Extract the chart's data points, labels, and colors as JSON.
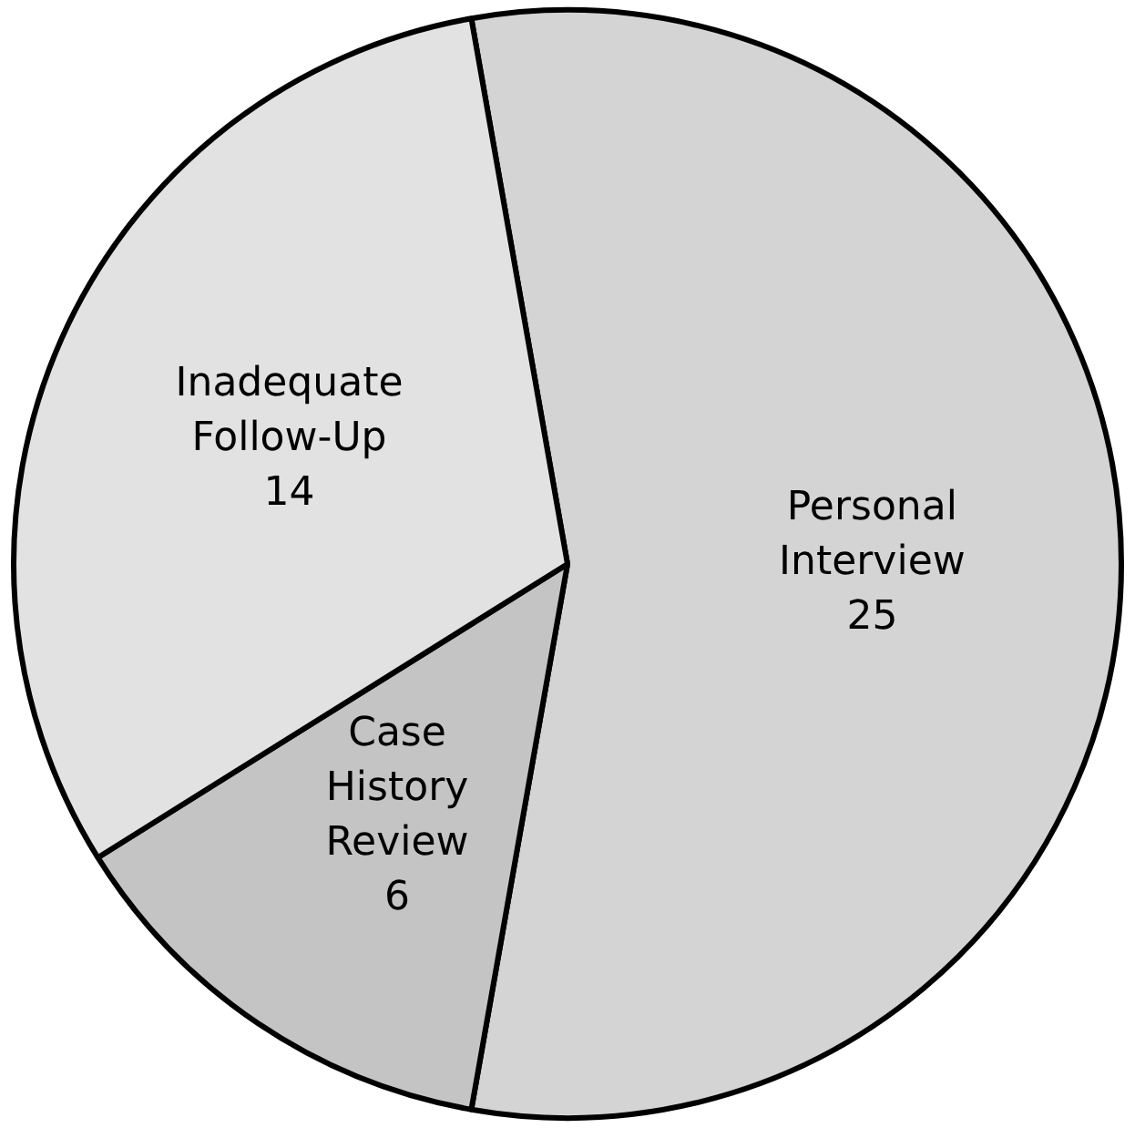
{
  "chart_data": {
    "type": "pie",
    "categories": [
      "Personal Interview",
      "Case History Review",
      "Inadequate Follow-Up"
    ],
    "values": [
      25,
      6,
      14
    ],
    "colors": [
      "#d4d4d4",
      "#c4c4c4",
      "#e2e2e2"
    ],
    "data_labels": true
  }
}
